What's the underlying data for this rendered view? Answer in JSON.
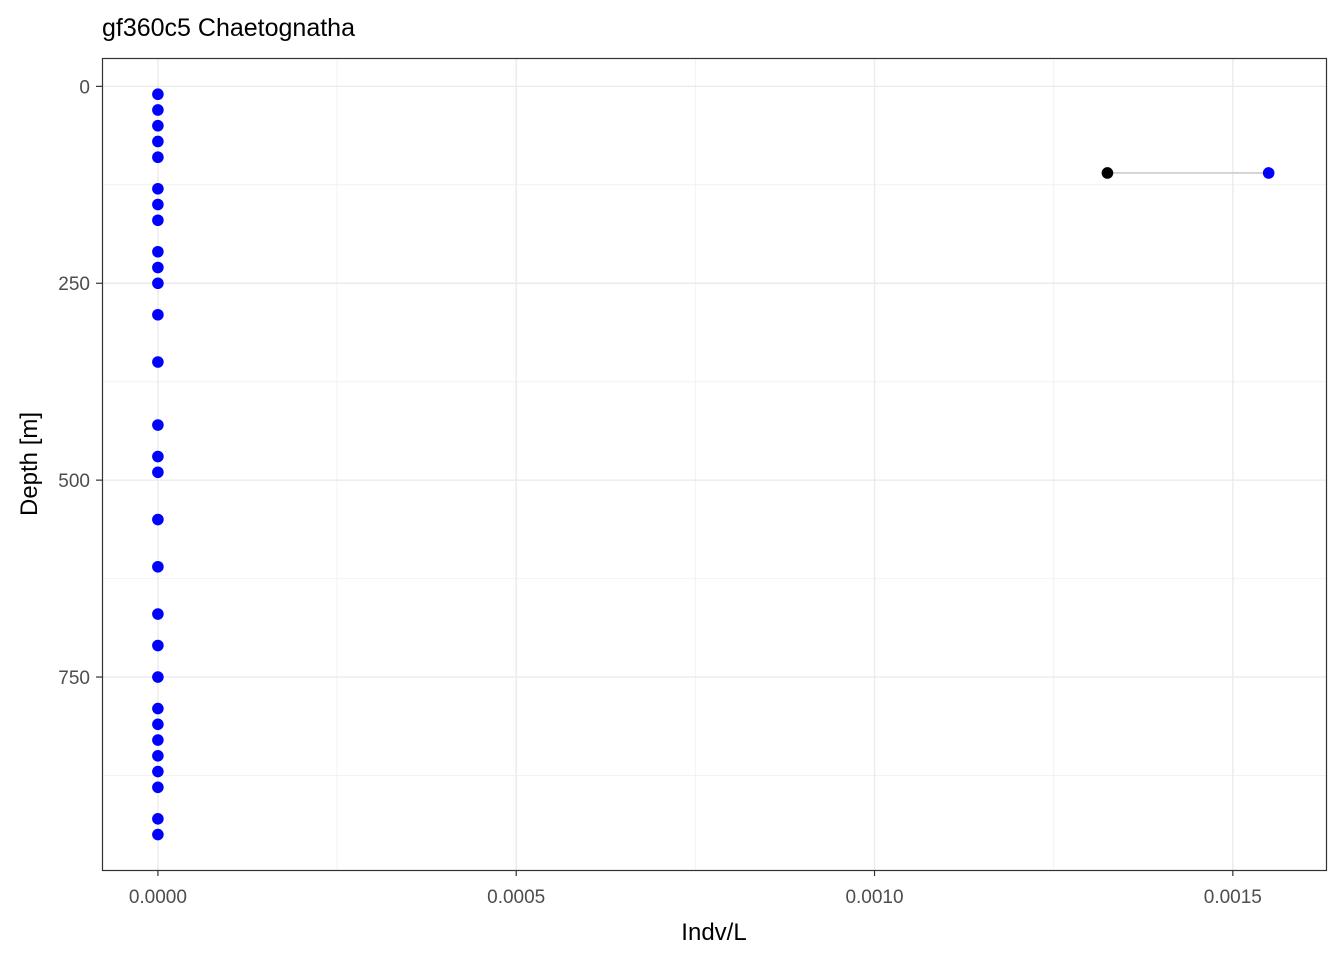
{
  "chart_data": {
    "type": "scatter",
    "title": "gf360c5 Chaetognatha",
    "xlabel": "Indv/L",
    "ylabel": "Depth [m]",
    "x_ticks": [
      {
        "value": 0.0,
        "label": "0.0000"
      },
      {
        "value": 0.0005,
        "label": "0.0005"
      },
      {
        "value": 0.001,
        "label": "0.0010"
      },
      {
        "value": 0.0015,
        "label": "0.0015"
      }
    ],
    "y_ticks": [
      {
        "value": 0,
        "label": "0"
      },
      {
        "value": 250,
        "label": "250"
      },
      {
        "value": 500,
        "label": "500"
      },
      {
        "value": 750,
        "label": "750"
      }
    ],
    "xlim": [
      -7.8e-05,
      0.00163
    ],
    "ylim": [
      -36,
      995
    ],
    "y_reversed": true,
    "grid": true,
    "series": [
      {
        "color": "#0000ff",
        "points": [
          {
            "x": 0,
            "y": 10
          },
          {
            "x": 0,
            "y": 30
          },
          {
            "x": 0,
            "y": 50
          },
          {
            "x": 0,
            "y": 70
          },
          {
            "x": 0,
            "y": 90
          },
          {
            "x": 0,
            "y": 130
          },
          {
            "x": 0,
            "y": 150
          },
          {
            "x": 0,
            "y": 170
          },
          {
            "x": 0,
            "y": 210
          },
          {
            "x": 0,
            "y": 230
          },
          {
            "x": 0,
            "y": 250
          },
          {
            "x": 0,
            "y": 290
          },
          {
            "x": 0,
            "y": 350
          },
          {
            "x": 0,
            "y": 430
          },
          {
            "x": 0,
            "y": 470
          },
          {
            "x": 0,
            "y": 490
          },
          {
            "x": 0,
            "y": 550
          },
          {
            "x": 0,
            "y": 610
          },
          {
            "x": 0,
            "y": 670
          },
          {
            "x": 0,
            "y": 710
          },
          {
            "x": 0,
            "y": 750
          },
          {
            "x": 0,
            "y": 790
          },
          {
            "x": 0,
            "y": 810
          },
          {
            "x": 0,
            "y": 830
          },
          {
            "x": 0,
            "y": 850
          },
          {
            "x": 0,
            "y": 870
          },
          {
            "x": 0,
            "y": 890
          },
          {
            "x": 0,
            "y": 930
          },
          {
            "x": 0,
            "y": 950
          },
          {
            "x": 0.00155,
            "y": 110
          }
        ]
      },
      {
        "color": "#000000",
        "points": [
          {
            "x": 0.001325,
            "y": 110
          }
        ]
      }
    ],
    "connector": {
      "x1": 0.001325,
      "x2": 0.00155,
      "y": 110,
      "color": "#cccccc"
    }
  }
}
